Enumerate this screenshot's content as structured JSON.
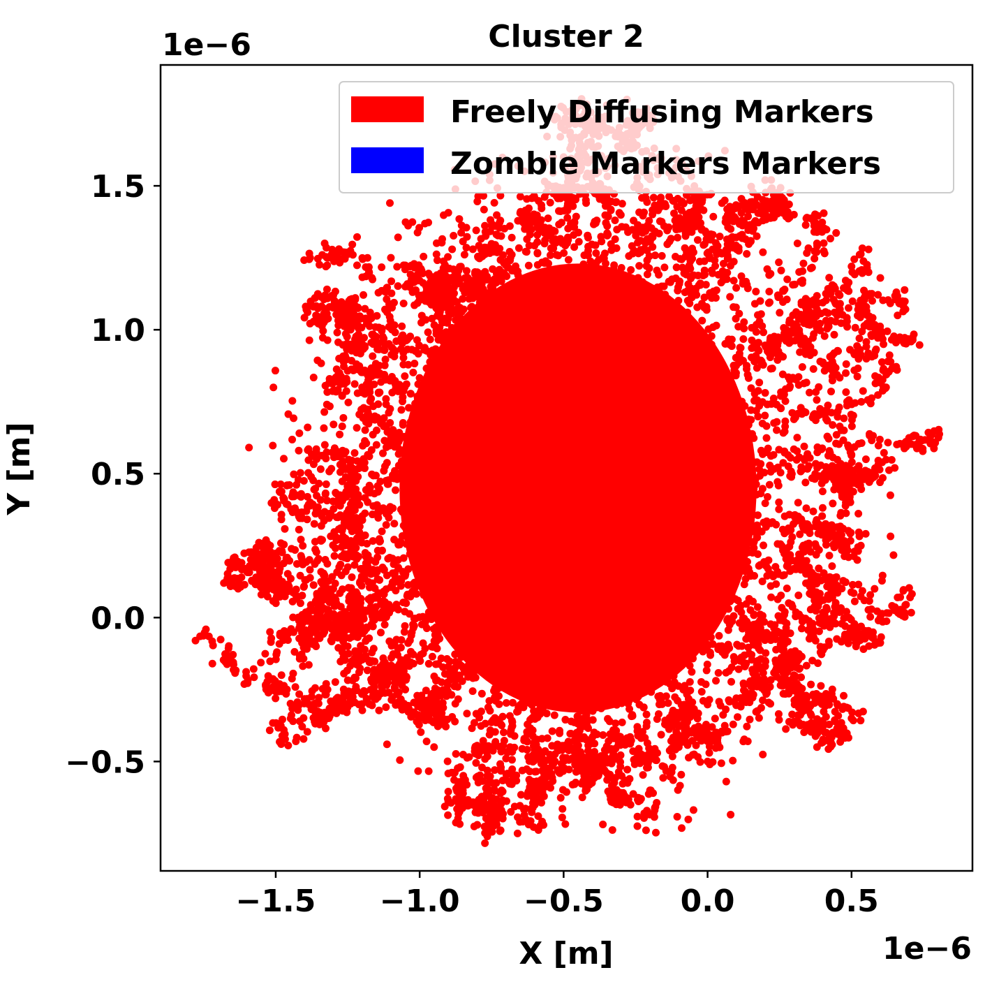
{
  "chart_data": {
    "type": "scatter",
    "title": "Cluster 2",
    "xlabel": "X [m]",
    "ylabel": "Y [m]",
    "x_offset_label": "1e−6",
    "y_offset_label": "1e−6",
    "xlim": [
      -1.9,
      0.92
    ],
    "ylim": [
      -0.88,
      1.92
    ],
    "xticks": [
      {
        "value": -1.5,
        "label": "−1.5"
      },
      {
        "value": -1.0,
        "label": "−1.0"
      },
      {
        "value": -0.5,
        "label": "−0.5"
      },
      {
        "value": 0.0,
        "label": "0.0"
      },
      {
        "value": 0.5,
        "label": "0.5"
      }
    ],
    "yticks": [
      {
        "value": -0.5,
        "label": "−0.5"
      },
      {
        "value": 0.0,
        "label": "0.0"
      },
      {
        "value": 0.5,
        "label": "0.5"
      },
      {
        "value": 1.0,
        "label": "1.0"
      },
      {
        "value": 1.5,
        "label": "1.5"
      }
    ],
    "grid": false,
    "legend_position": "upper-right",
    "series": [
      {
        "name": "Freely Diffusing Markers",
        "color": "#ff0000",
        "note_region": {
          "center": [
            -0.45,
            0.45
          ],
          "core_radius": [
            0.62,
            0.78
          ],
          "extent_x": [
            -1.72,
            0.72
          ],
          "extent_y": [
            -0.75,
            1.8
          ]
        },
        "points": [
          [
            -1.72,
            -0.16
          ],
          [
            -1.68,
            0.12
          ],
          [
            -1.64,
            0.2
          ],
          [
            -1.6,
            0.16
          ],
          [
            -1.55,
            0.08
          ],
          [
            -1.52,
            -0.05
          ],
          [
            -1.48,
            -0.2
          ],
          [
            -1.44,
            -0.36
          ],
          [
            -1.43,
            -0.43
          ],
          [
            -1.4,
            0.0
          ],
          [
            -1.46,
            0.46
          ],
          [
            -1.42,
            0.58
          ],
          [
            -1.38,
            0.4
          ],
          [
            -1.33,
            1.3
          ],
          [
            -1.3,
            1.12
          ],
          [
            -1.36,
            1.05
          ],
          [
            -1.28,
            0.9
          ],
          [
            -1.24,
            1.0
          ],
          [
            -1.2,
            0.8
          ],
          [
            -1.15,
            0.6
          ],
          [
            -1.1,
            1.25
          ],
          [
            -1.05,
            1.15
          ],
          [
            -0.98,
            1.1
          ],
          [
            -0.9,
            1.18
          ],
          [
            -0.8,
            1.2
          ],
          [
            -0.72,
            1.1
          ],
          [
            -0.68,
            1.32
          ],
          [
            -0.6,
            1.38
          ],
          [
            -0.55,
            1.5
          ],
          [
            -0.5,
            1.6
          ],
          [
            -0.42,
            1.7
          ],
          [
            -0.35,
            1.78
          ],
          [
            -0.28,
            1.8
          ],
          [
            -0.2,
            1.7
          ],
          [
            -0.12,
            1.55
          ],
          [
            -0.05,
            1.48
          ],
          [
            0.05,
            1.44
          ],
          [
            0.12,
            1.38
          ],
          [
            0.2,
            1.52
          ],
          [
            0.3,
            1.4
          ],
          [
            0.38,
            1.3
          ],
          [
            0.35,
            1.1
          ],
          [
            0.45,
            1.05
          ],
          [
            0.5,
            1.22
          ],
          [
            0.6,
            1.18
          ],
          [
            0.66,
            1.05
          ],
          [
            0.7,
            0.96
          ],
          [
            0.62,
            0.8
          ],
          [
            0.72,
            0.6
          ],
          [
            0.65,
            0.52
          ],
          [
            0.55,
            0.55
          ],
          [
            0.48,
            0.4
          ],
          [
            0.42,
            0.3
          ],
          [
            0.52,
            0.2
          ],
          [
            0.58,
            0.1
          ],
          [
            0.66,
            0.07
          ],
          [
            0.6,
            0.0
          ],
          [
            0.5,
            -0.05
          ],
          [
            0.45,
            -0.3
          ],
          [
            0.5,
            -0.35
          ],
          [
            0.38,
            -0.45
          ],
          [
            0.36,
            -0.34
          ],
          [
            0.3,
            -0.2
          ],
          [
            0.2,
            -0.15
          ],
          [
            0.1,
            -0.28
          ],
          [
            0.05,
            -0.4
          ],
          [
            0.0,
            -0.5
          ],
          [
            -0.1,
            -0.45
          ],
          [
            -0.2,
            -0.6
          ],
          [
            -0.22,
            -0.68
          ],
          [
            -0.3,
            -0.62
          ],
          [
            -0.38,
            -0.55
          ],
          [
            -0.45,
            -0.5
          ],
          [
            -0.55,
            -0.58
          ],
          [
            -0.6,
            -0.65
          ],
          [
            -0.66,
            -0.75
          ],
          [
            -0.72,
            -0.68
          ],
          [
            -0.8,
            -0.72
          ],
          [
            -0.85,
            -0.6
          ],
          [
            -0.9,
            -0.64
          ],
          [
            -0.95,
            -0.45
          ],
          [
            -1.0,
            -0.35
          ],
          [
            -1.05,
            -0.25
          ],
          [
            -1.1,
            -0.2
          ],
          [
            -1.2,
            -0.3
          ],
          [
            -1.25,
            -0.1
          ],
          [
            -1.32,
            -0.25
          ],
          [
            -1.36,
            -0.1
          ],
          [
            -1.3,
            0.1
          ],
          [
            -1.26,
            0.25
          ]
        ]
      },
      {
        "name": "Zombie Markers Markers",
        "color": "#0000ff",
        "points": []
      }
    ]
  }
}
